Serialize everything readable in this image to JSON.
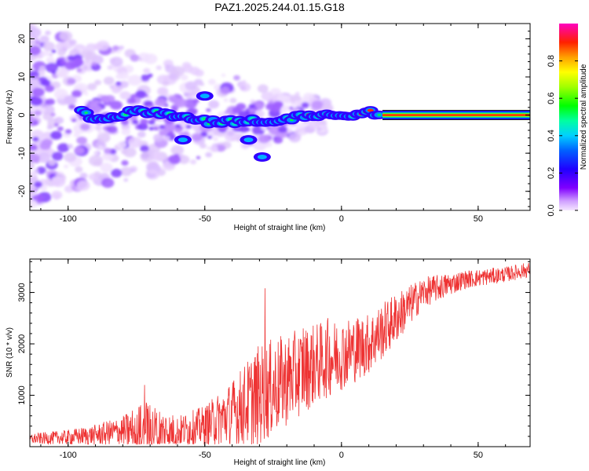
{
  "title": "PAZ1.2025.244.01.15.G18",
  "colors": {
    "line": "#ee3333",
    "axis": "#000000",
    "background": "#ffffff"
  },
  "chart_data": [
    {
      "type": "heatmap",
      "title": "PAZ1.2025.244.01.15.G18",
      "xlabel": "Height of straight line (km)",
      "ylabel": "Frequency (Hz)",
      "xlim": [
        -114,
        69
      ],
      "ylim": [
        -25,
        24
      ],
      "x_ticks": [
        -100,
        -50,
        0,
        50
      ],
      "x_tick_labels": [
        "-100",
        "-50",
        "0",
        "50"
      ],
      "y_ticks": [
        -20,
        -10,
        0,
        10,
        20
      ],
      "y_tick_labels": [
        "-20",
        "-10",
        "0",
        "10",
        "20"
      ],
      "description_of_ridge": [
        {
          "x": -110,
          "y": 6
        },
        {
          "x": -90,
          "y": -1
        },
        {
          "x": -75,
          "y": 1
        },
        {
          "x": -58,
          "y": -0.5
        },
        {
          "x": -48,
          "y": -2
        },
        {
          "x": -35,
          "y": -1.5
        },
        {
          "x": -25,
          "y": -2
        },
        {
          "x": -15,
          "y": 0
        },
        {
          "x": 0,
          "y": -0.5
        },
        {
          "x": 8,
          "y": 1
        },
        {
          "x": 15,
          "y": 0
        },
        {
          "x": 69,
          "y": 0
        }
      ],
      "colorbar": {
        "label": "Normalized spectral amplitude",
        "range": [
          0.0,
          1.0
        ],
        "ticks": [
          0.0,
          0.2,
          0.4,
          0.6,
          0.8
        ],
        "tick_labels": [
          "0.0",
          "0.2",
          "0.4",
          "0.6",
          "0.8"
        ]
      }
    },
    {
      "type": "line",
      "xlabel": "Height of straight line (km)",
      "ylabel": "SNR (10 * v/v)",
      "xlim": [
        -114,
        69
      ],
      "ylim": [
        0,
        3650
      ],
      "x_ticks": [
        -100,
        -50,
        0,
        50
      ],
      "x_tick_labels": [
        "-100",
        "-50",
        "0",
        "50"
      ],
      "y_ticks": [
        1000,
        2000,
        3000
      ],
      "y_tick_labels": [
        "1000",
        "2000",
        "3000"
      ],
      "series": [
        {
          "name": "SNR",
          "color": "#ee3333",
          "envelope": [
            {
              "x": -114,
              "mean": 150,
              "amp": 100
            },
            {
              "x": -100,
              "mean": 180,
              "amp": 150
            },
            {
              "x": -90,
              "mean": 230,
              "amp": 200
            },
            {
              "x": -80,
              "mean": 300,
              "amp": 300
            },
            {
              "x": -72,
              "mean": 330,
              "amp": 600
            },
            {
              "x": -60,
              "mean": 300,
              "amp": 300
            },
            {
              "x": -50,
              "mean": 400,
              "amp": 400
            },
            {
              "x": -40,
              "mean": 650,
              "amp": 650
            },
            {
              "x": -30,
              "mean": 1000,
              "amp": 1000
            },
            {
              "x": -20,
              "mean": 1300,
              "amp": 900
            },
            {
              "x": -10,
              "mean": 1600,
              "amp": 800
            },
            {
              "x": 0,
              "mean": 1800,
              "amp": 700
            },
            {
              "x": 10,
              "mean": 2000,
              "amp": 600
            },
            {
              "x": 20,
              "mean": 2500,
              "amp": 500
            },
            {
              "x": 30,
              "mean": 3000,
              "amp": 300
            },
            {
              "x": 45,
              "mean": 3250,
              "amp": 180
            },
            {
              "x": 60,
              "mean": 3350,
              "amp": 150
            },
            {
              "x": 69,
              "mean": 3450,
              "amp": 150
            }
          ],
          "spikes": [
            {
              "x": -72,
              "y": 1200
            },
            {
              "x": -28,
              "y": 3080
            },
            {
              "x": -14,
              "y": 2300
            },
            {
              "x": -5,
              "y": 2500
            }
          ]
        }
      ]
    }
  ]
}
